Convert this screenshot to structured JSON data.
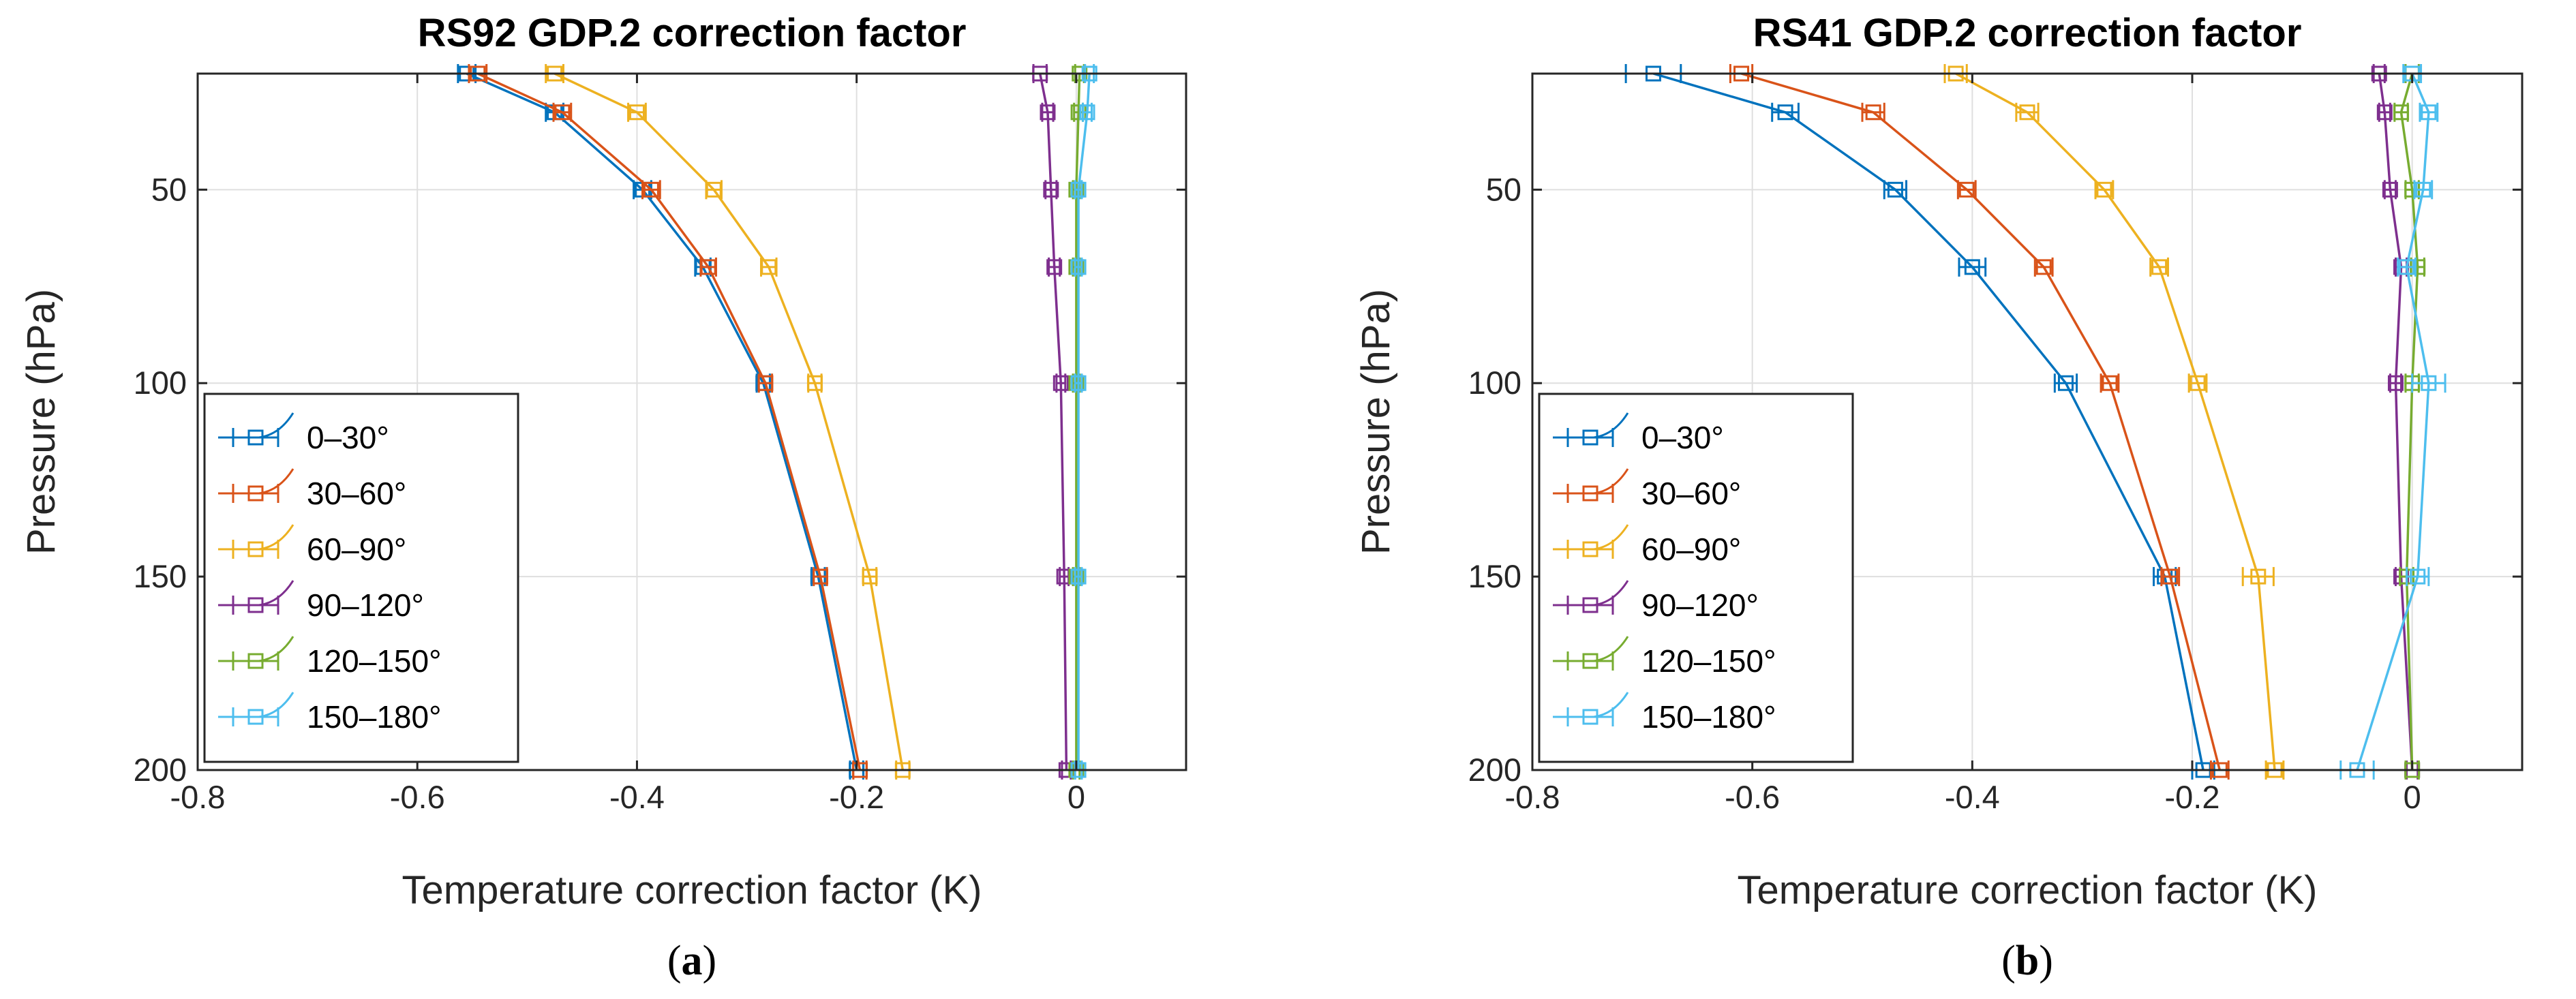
{
  "chart_data": [
    {
      "type": "line",
      "title": "RS92 GDP.2 correction factor",
      "xlabel": "Temperature correction factor (K)",
      "ylabel": "Pressure (hPa)",
      "panel_label": "a",
      "xlim": [
        -0.8,
        0.1
      ],
      "ylim": [
        20,
        200
      ],
      "y_reversed": true,
      "grid": true,
      "xticks": [
        -0.8,
        -0.6,
        -0.4,
        -0.2,
        0
      ],
      "xtick_labels": [
        "-0.8",
        "-0.6",
        "-0.4",
        "-0.2",
        "0"
      ],
      "yticks": [
        50,
        100,
        150,
        200
      ],
      "ytick_labels": [
        "50",
        "100",
        "150",
        "200"
      ],
      "legend_position": "lower-left",
      "pressure": [
        20,
        30,
        50,
        70,
        100,
        150,
        200
      ],
      "series": [
        {
          "name": "0–30°",
          "color": "#0072BD",
          "values": [
            -0.555,
            -0.475,
            -0.395,
            -0.34,
            -0.285,
            -0.235,
            -0.2
          ],
          "error": [
            0.008,
            0.008,
            0.008,
            0.007,
            0.006,
            0.006,
            0.006
          ]
        },
        {
          "name": "30–60°",
          "color": "#D95319",
          "values": [
            -0.545,
            -0.468,
            -0.387,
            -0.335,
            -0.283,
            -0.233,
            -0.197
          ],
          "error": [
            0.008,
            0.008,
            0.008,
            0.007,
            0.006,
            0.006,
            0.006
          ]
        },
        {
          "name": "60–90°",
          "color": "#EDB120",
          "values": [
            -0.475,
            -0.4,
            -0.33,
            -0.28,
            -0.238,
            -0.188,
            -0.158
          ],
          "error": [
            0.008,
            0.008,
            0.007,
            0.007,
            0.006,
            0.006,
            0.006
          ]
        },
        {
          "name": "90–120°",
          "color": "#7E2F8E",
          "values": [
            -0.033,
            -0.026,
            -0.023,
            -0.02,
            -0.014,
            -0.011,
            -0.009
          ],
          "error": [
            0.006,
            0.005,
            0.005,
            0.005,
            0.004,
            0.004,
            0.004
          ]
        },
        {
          "name": "120–150°",
          "color": "#77AC30",
          "values": [
            0.003,
            0.002,
            0.0,
            0.0,
            0.0,
            0.0,
            0.0
          ],
          "error": [
            0.004,
            0.004,
            0.003,
            0.003,
            0.003,
            0.003,
            0.003
          ]
        },
        {
          "name": "150–180°",
          "color": "#4DBEEE",
          "values": [
            0.012,
            0.01,
            0.002,
            0.002,
            0.002,
            0.002,
            0.002
          ],
          "error": [
            0.004,
            0.004,
            0.003,
            0.003,
            0.003,
            0.003,
            0.003
          ]
        }
      ]
    },
    {
      "type": "line",
      "title": "RS41 GDP.2 correction factor",
      "xlabel": "Temperature correction factor (K)",
      "ylabel": "Pressure (hPa)",
      "panel_label": "b",
      "xlim": [
        -0.8,
        0.1
      ],
      "ylim": [
        20,
        200
      ],
      "y_reversed": true,
      "grid": true,
      "xticks": [
        -0.8,
        -0.6,
        -0.4,
        -0.2,
        0
      ],
      "xtick_labels": [
        "-0.8",
        "-0.6",
        "-0.4",
        "-0.2",
        "0"
      ],
      "yticks": [
        50,
        100,
        150,
        200
      ],
      "ytick_labels": [
        "50",
        "100",
        "150",
        "200"
      ],
      "legend_position": "lower-left",
      "pressure": [
        20,
        30,
        50,
        70,
        100,
        150,
        200
      ],
      "series": [
        {
          "name": "0–30°",
          "color": "#0072BD",
          "values": [
            -0.69,
            -0.57,
            -0.47,
            -0.4,
            -0.315,
            -0.225,
            -0.19
          ],
          "error": [
            0.025,
            0.012,
            0.01,
            0.012,
            0.01,
            0.01,
            0.01
          ]
        },
        {
          "name": "30–60°",
          "color": "#D95319",
          "values": [
            -0.61,
            -0.49,
            -0.405,
            -0.335,
            -0.275,
            -0.22,
            -0.175
          ],
          "error": [
            0.01,
            0.01,
            0.008,
            0.008,
            0.008,
            0.008,
            0.008
          ]
        },
        {
          "name": "60–90°",
          "color": "#EDB120",
          "values": [
            -0.415,
            -0.35,
            -0.28,
            -0.23,
            -0.195,
            -0.14,
            -0.125
          ],
          "error": [
            0.01,
            0.01,
            0.008,
            0.008,
            0.008,
            0.014,
            0.008
          ]
        },
        {
          "name": "90–120°",
          "color": "#7E2F8E",
          "values": [
            -0.03,
            -0.025,
            -0.02,
            -0.01,
            -0.015,
            -0.01,
            0.0
          ],
          "error": [
            0.005,
            0.005,
            0.005,
            0.005,
            0.005,
            0.005,
            0.005
          ]
        },
        {
          "name": "120–150°",
          "color": "#77AC30",
          "values": [
            0.0,
            -0.01,
            0.0,
            0.005,
            0.0,
            -0.005,
            0.0
          ],
          "error": [
            0.006,
            0.006,
            0.006,
            0.006,
            0.006,
            0.006,
            0.006
          ]
        },
        {
          "name": "150–180°",
          "color": "#4DBEEE",
          "values": [
            0.0,
            0.015,
            0.01,
            -0.005,
            0.015,
            0.005,
            -0.05
          ],
          "error": [
            0.008,
            0.008,
            0.008,
            0.008,
            0.015,
            0.01,
            0.015
          ]
        }
      ]
    }
  ]
}
